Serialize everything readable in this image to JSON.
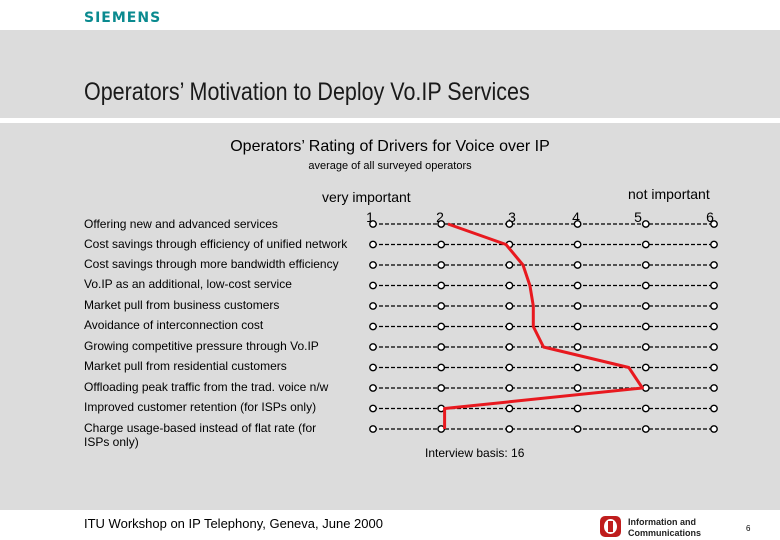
{
  "header": {
    "brand": "SIEMENS",
    "page_title": "Operators’ Motivation to Deploy Vo.IP Services"
  },
  "chart_data": {
    "type": "line",
    "title": "Operators’ Rating of Drivers for Voice over IP",
    "subtitle": "average of all surveyed operators",
    "xlabel_left": "very important",
    "xlabel_right": "not important",
    "scale": [
      "1",
      "2",
      "3",
      "4",
      "5",
      "6"
    ],
    "xlim": [
      1,
      6
    ],
    "categories": [
      "Offering new and advanced services",
      "Cost savings through efficiency of unified network",
      "Cost savings through more bandwidth efficiency",
      "Vo.IP as an additional, low-cost service",
      "Market pull from business customers",
      "Avoidance of interconnection cost",
      "Growing competitive pressure through Vo.IP",
      "Market pull from residential customers",
      "Offloading peak traffic from the trad. voice n/w",
      "Improved customer retention (for ISPs only)",
      "Charge usage-based instead of flat rate (for ISPs only)"
    ],
    "values": [
      2.1,
      2.95,
      3.2,
      3.3,
      3.35,
      3.35,
      3.5,
      4.75,
      4.95,
      2.05,
      2.05
    ],
    "note": "Interview basis: 16",
    "series_color": "#e8191f"
  },
  "footer": {
    "event": "ITU Workshop on IP Telephony, Geneva, June 2000",
    "logo_line1": "Information and",
    "logo_line2": "Communications",
    "page": "6"
  }
}
